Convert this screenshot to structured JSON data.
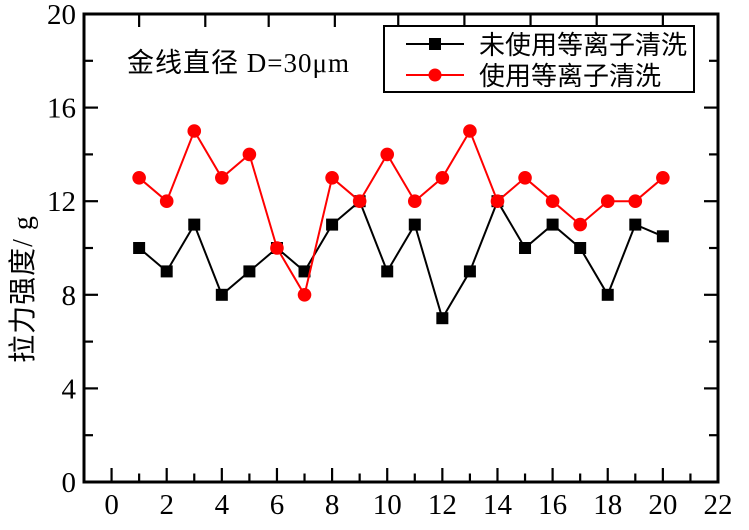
{
  "chart_data": {
    "type": "line",
    "title": "",
    "annotation": "金线直径 D=30μm",
    "ylabel": "拉力强度/ g",
    "xlabel": "",
    "xlim": [
      -1,
      22
    ],
    "ylim": [
      0,
      20
    ],
    "x_major_ticks": [
      0,
      2,
      4,
      6,
      8,
      10,
      12,
      14,
      16,
      18,
      20,
      22
    ],
    "x_minor_ticks": [
      1,
      3,
      5,
      7,
      9,
      11,
      13,
      15,
      17,
      19,
      21
    ],
    "x_top_ticks": [
      1,
      3.4,
      5.7,
      8.1,
      10.4,
      12.8,
      15.2,
      17.6,
      20
    ],
    "y_major_ticks": [
      0,
      4,
      8,
      12,
      16,
      20
    ],
    "y_minor_ticks": [
      2,
      6,
      10,
      14,
      18
    ],
    "grid": false,
    "legend_position": "top-right",
    "x": [
      1,
      2,
      3,
      4,
      5,
      6,
      7,
      8,
      9,
      10,
      11,
      12,
      13,
      14,
      15,
      16,
      17,
      18,
      19,
      20
    ],
    "series": [
      {
        "name": "未使用等离子清洗",
        "marker": "square",
        "color": "#000000",
        "values": [
          10,
          9,
          11,
          8,
          9,
          10,
          9,
          11,
          12,
          9,
          11,
          7,
          9,
          12,
          10,
          11,
          10,
          8,
          11,
          10.5
        ]
      },
      {
        "name": "使用等离子清洗",
        "marker": "circle",
        "color": "#ff0000",
        "values": [
          13,
          12,
          15,
          13,
          14,
          10,
          8,
          13,
          12,
          14,
          12,
          13,
          15,
          12,
          13,
          12,
          11,
          12,
          12,
          13
        ]
      }
    ]
  },
  "colors": {
    "background": "#ffffff",
    "axis": "#000000",
    "series_no_plasma": "#000000",
    "series_plasma": "#ff0000"
  }
}
